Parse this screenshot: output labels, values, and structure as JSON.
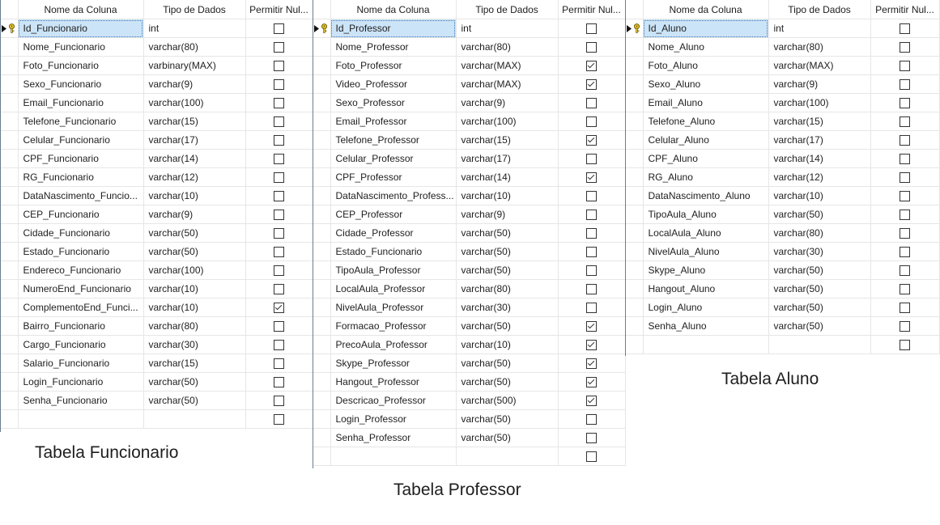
{
  "headers": {
    "name": "Nome da Coluna",
    "type": "Tipo de Dados",
    "null": "Permitir Nul..."
  },
  "tables": [
    {
      "caption": "Tabela Funcionario",
      "rows": [
        {
          "name": "Id_Funcionario",
          "type": "int",
          "nullable": false,
          "key": true
        },
        {
          "name": "Nome_Funcionario",
          "type": "varchar(80)",
          "nullable": false
        },
        {
          "name": "Foto_Funcionario",
          "type": "varbinary(MAX)",
          "nullable": false
        },
        {
          "name": "Sexo_Funcionario",
          "type": "varchar(9)",
          "nullable": false
        },
        {
          "name": "Email_Funcionario",
          "type": "varchar(100)",
          "nullable": false
        },
        {
          "name": "Telefone_Funcionario",
          "type": "varchar(15)",
          "nullable": false
        },
        {
          "name": "Celular_Funcionario",
          "type": "varchar(17)",
          "nullable": false
        },
        {
          "name": "CPF_Funcionario",
          "type": "varchar(14)",
          "nullable": false
        },
        {
          "name": "RG_Funcionario",
          "type": "varchar(12)",
          "nullable": false
        },
        {
          "name": "DataNascimento_Funcio...",
          "type": "varchar(10)",
          "nullable": false
        },
        {
          "name": "CEP_Funcionario",
          "type": "varchar(9)",
          "nullable": false
        },
        {
          "name": "Cidade_Funcionario",
          "type": "varchar(50)",
          "nullable": false
        },
        {
          "name": "Estado_Funcionario",
          "type": "varchar(50)",
          "nullable": false
        },
        {
          "name": "Endereco_Funcionario",
          "type": "varchar(100)",
          "nullable": false
        },
        {
          "name": "NumeroEnd_Funcionario",
          "type": "varchar(10)",
          "nullable": false
        },
        {
          "name": "ComplementoEnd_Funci...",
          "type": "varchar(10)",
          "nullable": true
        },
        {
          "name": "Bairro_Funcionario",
          "type": "varchar(80)",
          "nullable": false
        },
        {
          "name": "Cargo_Funcionario",
          "type": "varchar(30)",
          "nullable": false
        },
        {
          "name": "Salario_Funcionario",
          "type": "varchar(15)",
          "nullable": false
        },
        {
          "name": "Login_Funcionario",
          "type": "varchar(50)",
          "nullable": false
        },
        {
          "name": "Senha_Funcionario",
          "type": "varchar(50)",
          "nullable": false
        },
        {
          "name": "",
          "type": "",
          "nullable": false
        }
      ]
    },
    {
      "caption": "Tabela Professor",
      "rows": [
        {
          "name": "Id_Professor",
          "type": "int",
          "nullable": false,
          "key": true
        },
        {
          "name": "Nome_Professor",
          "type": "varchar(80)",
          "nullable": false
        },
        {
          "name": "Foto_Professor",
          "type": "varchar(MAX)",
          "nullable": true
        },
        {
          "name": "Video_Professor",
          "type": "varchar(MAX)",
          "nullable": true
        },
        {
          "name": "Sexo_Professor",
          "type": "varchar(9)",
          "nullable": false
        },
        {
          "name": "Email_Professor",
          "type": "varchar(100)",
          "nullable": false
        },
        {
          "name": "Telefone_Professor",
          "type": "varchar(15)",
          "nullable": true
        },
        {
          "name": "Celular_Professor",
          "type": "varchar(17)",
          "nullable": false
        },
        {
          "name": "CPF_Professor",
          "type": "varchar(14)",
          "nullable": true
        },
        {
          "name": "DataNascimento_Profess...",
          "type": "varchar(10)",
          "nullable": false
        },
        {
          "name": "CEP_Professor",
          "type": "varchar(9)",
          "nullable": false
        },
        {
          "name": "Cidade_Professor",
          "type": "varchar(50)",
          "nullable": false
        },
        {
          "name": "Estado_Funcionario",
          "type": "varchar(50)",
          "nullable": false
        },
        {
          "name": "TipoAula_Professor",
          "type": "varchar(50)",
          "nullable": false
        },
        {
          "name": "LocalAula_Professor",
          "type": "varchar(80)",
          "nullable": false
        },
        {
          "name": "NivelAula_Professor",
          "type": "varchar(30)",
          "nullable": false
        },
        {
          "name": "Formacao_Professor",
          "type": "varchar(50)",
          "nullable": true
        },
        {
          "name": "PrecoAula_Professor",
          "type": "varchar(10)",
          "nullable": true
        },
        {
          "name": "Skype_Professor",
          "type": "varchar(50)",
          "nullable": true
        },
        {
          "name": "Hangout_Professor",
          "type": "varchar(50)",
          "nullable": true
        },
        {
          "name": "Descricao_Professor",
          "type": "varchar(500)",
          "nullable": true
        },
        {
          "name": "Login_Professor",
          "type": "varchar(50)",
          "nullable": false
        },
        {
          "name": "Senha_Professor",
          "type": "varchar(50)",
          "nullable": false
        },
        {
          "name": "",
          "type": "",
          "nullable": false
        }
      ]
    },
    {
      "caption": "Tabela Aluno",
      "rows": [
        {
          "name": "Id_Aluno",
          "type": "int",
          "nullable": false,
          "key": true
        },
        {
          "name": "Nome_Aluno",
          "type": "varchar(80)",
          "nullable": false
        },
        {
          "name": "Foto_Aluno",
          "type": "varchar(MAX)",
          "nullable": false
        },
        {
          "name": "Sexo_Aluno",
          "type": "varchar(9)",
          "nullable": false
        },
        {
          "name": "Email_Aluno",
          "type": "varchar(100)",
          "nullable": false
        },
        {
          "name": "Telefone_Aluno",
          "type": "varchar(15)",
          "nullable": false
        },
        {
          "name": "Celular_Aluno",
          "type": "varchar(17)",
          "nullable": false
        },
        {
          "name": "CPF_Aluno",
          "type": "varchar(14)",
          "nullable": false
        },
        {
          "name": "RG_Aluno",
          "type": "varchar(12)",
          "nullable": false
        },
        {
          "name": "DataNascimento_Aluno",
          "type": "varchar(10)",
          "nullable": false
        },
        {
          "name": "TipoAula_Aluno",
          "type": "varchar(50)",
          "nullable": false
        },
        {
          "name": "LocalAula_Aluno",
          "type": "varchar(80)",
          "nullable": false
        },
        {
          "name": "NivelAula_Aluno",
          "type": "varchar(30)",
          "nullable": false
        },
        {
          "name": "Skype_Aluno",
          "type": "varchar(50)",
          "nullable": false
        },
        {
          "name": "Hangout_Aluno",
          "type": "varchar(50)",
          "nullable": false
        },
        {
          "name": "Login_Aluno",
          "type": "varchar(50)",
          "nullable": false
        },
        {
          "name": "Senha_Aluno",
          "type": "varchar(50)",
          "nullable": false
        },
        {
          "name": "",
          "type": "",
          "nullable": false
        }
      ]
    }
  ],
  "icons": {
    "row_pointer": "row-selector-arrow-icon",
    "primary_key": "primary-key-icon",
    "checkbox": "checkbox-icon"
  }
}
